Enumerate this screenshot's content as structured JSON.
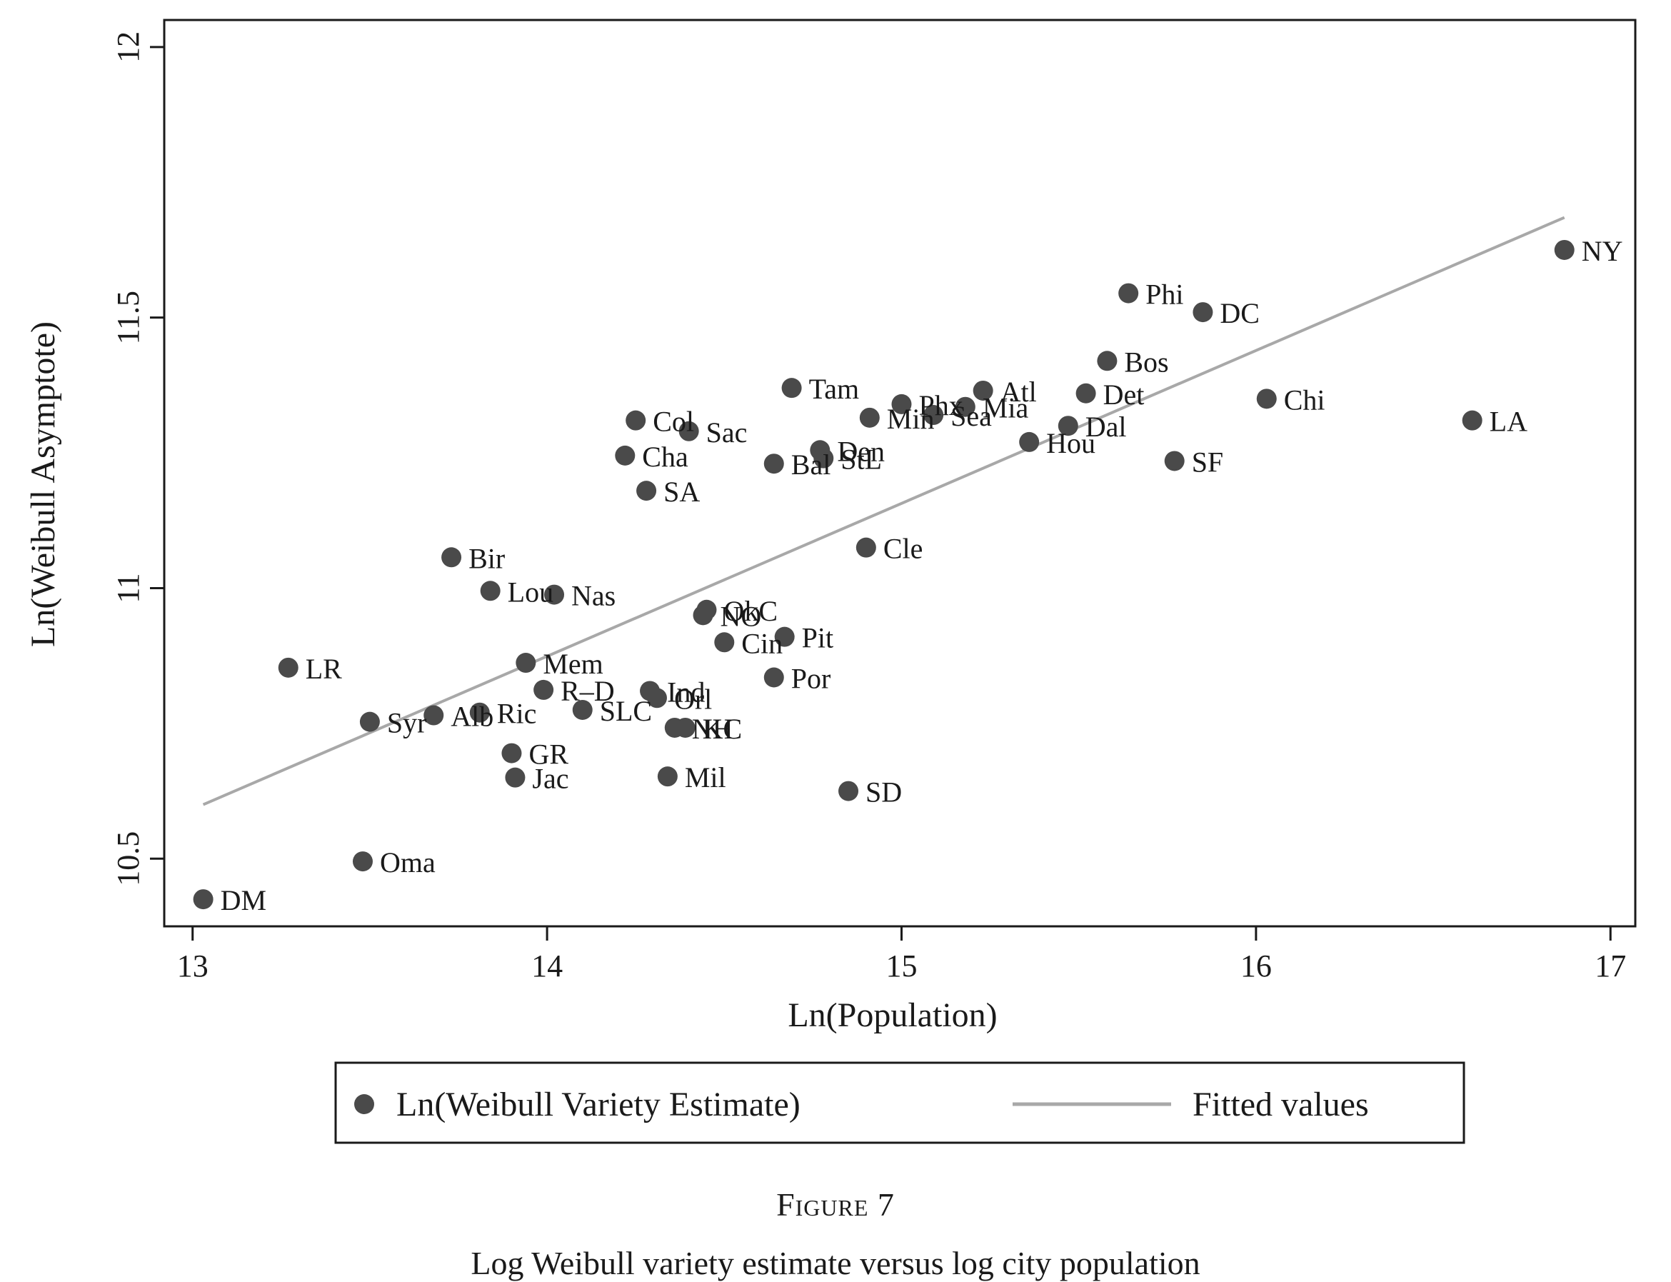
{
  "chart_data": {
    "type": "scatter",
    "xlabel": "Ln(Population)",
    "ylabel": "Ln(Weibull Asymptote)",
    "xlim": [
      12.92,
      17.07
    ],
    "ylim": [
      10.375,
      12.05
    ],
    "xticks": [
      13,
      14,
      15,
      16,
      17
    ],
    "yticks": [
      10.5,
      11,
      11.5,
      12
    ],
    "xtick_labels": [
      "13",
      "14",
      "15",
      "16",
      "17"
    ],
    "ytick_labels": [
      "10.5",
      "11",
      "11.5",
      "12"
    ],
    "grid": false,
    "legend_position": "bottom",
    "series": [
      {
        "name": "Ln(Weibull Variety Estimate)",
        "kind": "scatter",
        "color": "#4a4a4a",
        "points": [
          {
            "label": "NY",
            "x": 16.87,
            "y": 11.625
          },
          {
            "label": "Phi",
            "x": 15.64,
            "y": 11.545
          },
          {
            "label": "DC",
            "x": 15.85,
            "y": 11.51
          },
          {
            "label": "Bos",
            "x": 15.58,
            "y": 11.42
          },
          {
            "label": "Tam",
            "x": 14.69,
            "y": 11.37
          },
          {
            "label": "Atl",
            "x": 15.23,
            "y": 11.365
          },
          {
            "label": "Det",
            "x": 15.52,
            "y": 11.36
          },
          {
            "label": "Chi",
            "x": 16.03,
            "y": 11.35
          },
          {
            "label": "Phx",
            "x": 15.0,
            "y": 11.34
          },
          {
            "label": "Mia",
            "x": 15.18,
            "y": 11.335
          },
          {
            "label": "Sea",
            "x": 15.09,
            "y": 11.32
          },
          {
            "label": "Min",
            "x": 14.91,
            "y": 11.315
          },
          {
            "label": "Col",
            "x": 14.25,
            "y": 11.31
          },
          {
            "label": "LA",
            "x": 16.61,
            "y": 11.31
          },
          {
            "label": "Dal",
            "x": 15.47,
            "y": 11.3
          },
          {
            "label": "Sac",
            "x": 14.4,
            "y": 11.29
          },
          {
            "label": "Hou",
            "x": 15.36,
            "y": 11.27
          },
          {
            "label": "Den",
            "x": 14.77,
            "y": 11.255
          },
          {
            "label": "Cha",
            "x": 14.22,
            "y": 11.245
          },
          {
            "label": "StL",
            "x": 14.78,
            "y": 11.24
          },
          {
            "label": "SF",
            "x": 15.77,
            "y": 11.235
          },
          {
            "label": "Bal",
            "x": 14.64,
            "y": 11.23
          },
          {
            "label": "SA",
            "x": 14.28,
            "y": 11.18
          },
          {
            "label": "Cle",
            "x": 14.9,
            "y": 11.075
          },
          {
            "label": "Bir",
            "x": 13.73,
            "y": 11.057
          },
          {
            "label": "Lou",
            "x": 13.84,
            "y": 10.995
          },
          {
            "label": "Nas",
            "x": 14.02,
            "y": 10.988
          },
          {
            "label": "OkC",
            "x": 14.45,
            "y": 10.96
          },
          {
            "label": "NO",
            "x": 14.44,
            "y": 10.95
          },
          {
            "label": "Pit",
            "x": 14.67,
            "y": 10.91
          },
          {
            "label": "Cin",
            "x": 14.5,
            "y": 10.9
          },
          {
            "label": "Mem",
            "x": 13.94,
            "y": 10.862
          },
          {
            "label": "LR",
            "x": 13.27,
            "y": 10.853
          },
          {
            "label": "Por",
            "x": 14.64,
            "y": 10.835
          },
          {
            "label": "R–D",
            "x": 13.99,
            "y": 10.812
          },
          {
            "label": "Ind",
            "x": 14.29,
            "y": 10.81
          },
          {
            "label": "Orl",
            "x": 14.31,
            "y": 10.797
          },
          {
            "label": "SLC",
            "x": 14.1,
            "y": 10.775
          },
          {
            "label": "Ric",
            "x": 13.81,
            "y": 10.77
          },
          {
            "label": "Alb",
            "x": 13.68,
            "y": 10.765
          },
          {
            "label": "Syr",
            "x": 13.5,
            "y": 10.753
          },
          {
            "label": "NH",
            "x": 14.36,
            "y": 10.742
          },
          {
            "label": "KC",
            "x": 14.39,
            "y": 10.742
          },
          {
            "label": "GR",
            "x": 13.9,
            "y": 10.695
          },
          {
            "label": "Mil",
            "x": 14.34,
            "y": 10.652
          },
          {
            "label": "Jac",
            "x": 13.91,
            "y": 10.65
          },
          {
            "label": "SD",
            "x": 14.85,
            "y": 10.625
          },
          {
            "label": "Oma",
            "x": 13.48,
            "y": 10.495
          },
          {
            "label": "DM",
            "x": 13.03,
            "y": 10.425
          }
        ]
      },
      {
        "name": "Fitted values",
        "kind": "line",
        "color": "#a8a8a8",
        "x": [
          13.03,
          16.87
        ],
        "y": [
          10.6,
          11.685
        ]
      }
    ]
  },
  "caption": {
    "figure_label": "Figure 7",
    "title": "Log Weibull variety estimate versus log city population"
  }
}
